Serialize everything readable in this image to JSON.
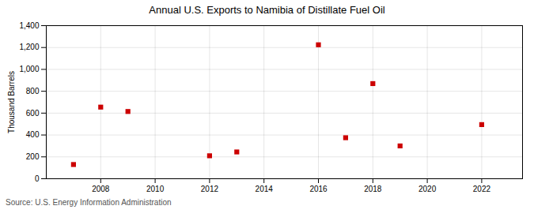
{
  "chart_data": {
    "type": "scatter",
    "title": "Annual U.S. Exports to Namibia of Distillate Fuel Oil",
    "ylabel": "Thousand Barrels",
    "annotations": [
      "Source: U.S. Energy Information Administration"
    ],
    "x": [
      2007,
      2008,
      2009,
      2012,
      2013,
      2016,
      2017,
      2018,
      2019,
      2022
    ],
    "values": [
      130,
      655,
      615,
      210,
      245,
      1225,
      375,
      870,
      300,
      495
    ],
    "color": "#cc0000",
    "marker": "square",
    "xlim": [
      2006,
      2023.5
    ],
    "xticks": [
      2008,
      2010,
      2012,
      2014,
      2016,
      2018,
      2020,
      2022
    ],
    "ylim": [
      0,
      1400
    ],
    "yticks": [
      0,
      200,
      400,
      600,
      800,
      {
        "value": 1000,
        "label": "1,000"
      },
      {
        "value": 1200,
        "label": "1,200"
      },
      {
        "value": 1400,
        "label": "1,400"
      }
    ],
    "grid": true
  }
}
